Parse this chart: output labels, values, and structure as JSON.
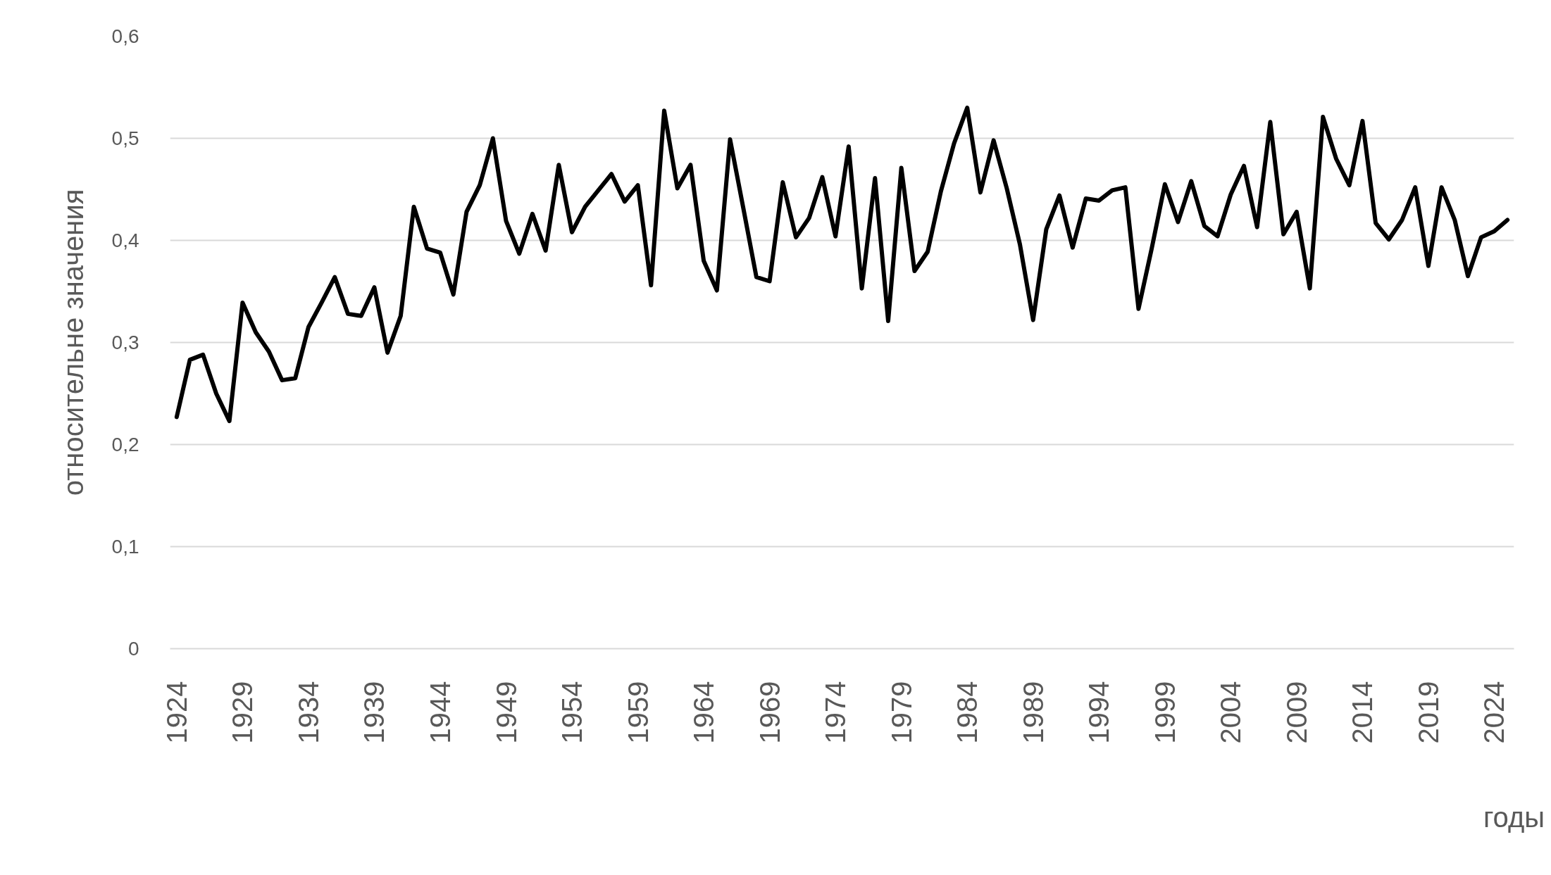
{
  "chart_data": {
    "type": "line",
    "xlabel": "годы",
    "ylabel": "относительне значения",
    "x": [
      1924,
      1925,
      1926,
      1927,
      1928,
      1929,
      1930,
      1931,
      1932,
      1933,
      1934,
      1935,
      1936,
      1937,
      1938,
      1939,
      1940,
      1941,
      1942,
      1943,
      1944,
      1945,
      1946,
      1947,
      1948,
      1949,
      1950,
      1951,
      1952,
      1953,
      1954,
      1955,
      1956,
      1957,
      1958,
      1959,
      1960,
      1961,
      1962,
      1963,
      1964,
      1965,
      1966,
      1967,
      1968,
      1969,
      1970,
      1971,
      1972,
      1973,
      1974,
      1975,
      1976,
      1977,
      1978,
      1979,
      1980,
      1981,
      1982,
      1983,
      1984,
      1985,
      1986,
      1987,
      1988,
      1989,
      1990,
      1991,
      1992,
      1993,
      1994,
      1995,
      1996,
      1997,
      1998,
      1999,
      2000,
      2001,
      2002,
      2003,
      2004,
      2005,
      2006,
      2007,
      2008,
      2009,
      2010,
      2011,
      2012,
      2013,
      2014,
      2015,
      2016,
      2017,
      2018,
      2019,
      2020,
      2021,
      2022,
      2023,
      2024,
      2025
    ],
    "series": [
      {
        "color": "#000000",
        "values": [
          0.227,
          0.283,
          0.288,
          0.25,
          0.223,
          0.339,
          0.31,
          0.291,
          0.263,
          0.265,
          0.315,
          0.339,
          0.364,
          0.328,
          0.326,
          0.354,
          0.29,
          0.326,
          0.433,
          0.392,
          0.388,
          0.347,
          0.428,
          0.454,
          0.5,
          0.419,
          0.387,
          0.426,
          0.39,
          0.474,
          0.408,
          0.433,
          0.449,
          0.465,
          0.438,
          0.454,
          0.356,
          0.527,
          0.451,
          0.474,
          0.38,
          0.351,
          0.499,
          0.432,
          0.364,
          0.36,
          0.457,
          0.403,
          0.422,
          0.462,
          0.404,
          0.492,
          0.353,
          0.461,
          0.321,
          0.471,
          0.37,
          0.389,
          0.448,
          0.495,
          0.53,
          0.447,
          0.498,
          0.451,
          0.396,
          0.322,
          0.411,
          0.444,
          0.393,
          0.441,
          0.439,
          0.449,
          0.452,
          0.333,
          0.392,
          0.455,
          0.418,
          0.458,
          0.414,
          0.404,
          0.445,
          0.473,
          0.413,
          0.516,
          0.406,
          0.428,
          0.353,
          0.521,
          0.48,
          0.454,
          0.517,
          0.417,
          0.401,
          0.42,
          0.452,
          0.375,
          0.452,
          0.42,
          0.365,
          0.403,
          0.409,
          0.42
        ]
      }
    ],
    "xlim": [
      1923.5,
      2025.5
    ],
    "xticks": [
      1924,
      1929,
      1934,
      1939,
      1944,
      1949,
      1954,
      1959,
      1964,
      1969,
      1974,
      1979,
      1984,
      1989,
      1994,
      1999,
      2004,
      2009,
      2014,
      2019,
      2024
    ],
    "ylim": [
      0,
      0.6
    ],
    "yticks": [
      0,
      {
        "value": 0.1,
        "label": "0,1"
      },
      {
        "value": 0.2,
        "label": "0,2"
      },
      {
        "value": 0.3,
        "label": "0,3"
      },
      {
        "value": 0.4,
        "label": "0,4"
      },
      {
        "value": 0.5,
        "label": "0,5"
      },
      {
        "value": 0.6,
        "label": "0,6"
      }
    ],
    "grid": "y",
    "line_style": "solid"
  }
}
